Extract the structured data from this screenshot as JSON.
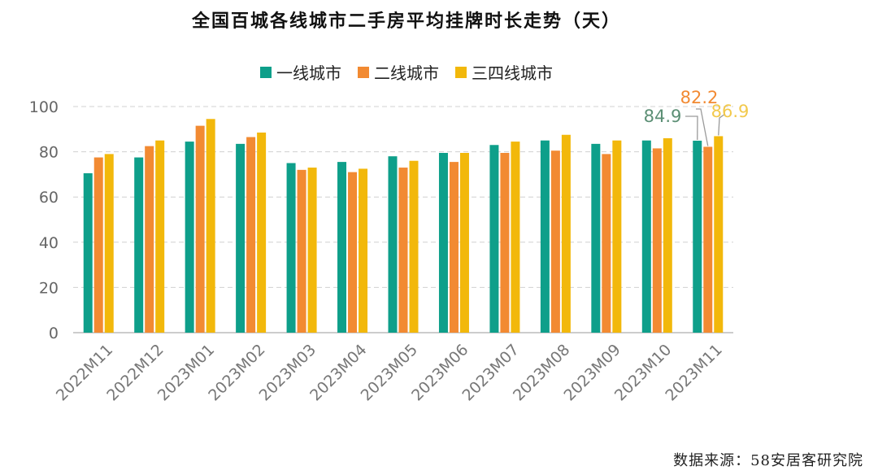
{
  "chart_data": {
    "type": "bar",
    "title": "全国百城各线城市二手房平均挂牌时长走势（天）",
    "categories": [
      "2022M11",
      "2022M12",
      "2023M01",
      "2023M02",
      "2023M03",
      "2023M04",
      "2023M05",
      "2023M06",
      "2023M07",
      "2023M08",
      "2023M09",
      "2023M10",
      "2023M11"
    ],
    "series": [
      {
        "name": "一线城市",
        "color": "#0e9f8a",
        "values": [
          70.5,
          77.5,
          84.5,
          83.5,
          75.0,
          75.5,
          78.0,
          79.5,
          83.0,
          85.0,
          83.5,
          85.0,
          84.9
        ]
      },
      {
        "name": "二线城市",
        "color": "#f28a32",
        "values": [
          77.5,
          82.5,
          91.5,
          86.5,
          72.0,
          71.0,
          73.0,
          75.5,
          79.5,
          80.5,
          79.0,
          81.5,
          82.2
        ]
      },
      {
        "name": "三四线城市",
        "color": "#f2b80b",
        "values": [
          79.0,
          85.0,
          94.5,
          88.5,
          73.0,
          72.5,
          76.0,
          79.5,
          84.5,
          87.5,
          85.0,
          86.0,
          86.9
        ]
      }
    ],
    "ylim": [
      0,
      100
    ],
    "yticks": [
      0,
      20,
      40,
      60,
      80,
      100
    ],
    "grid": true,
    "legend": "top-center",
    "annotations": [
      {
        "text": "84.9",
        "series": 0,
        "category": 12,
        "color": "#5c8f75"
      },
      {
        "text": "82.2",
        "series": 1,
        "category": 12,
        "color": "#f28a32"
      },
      {
        "text": "86.9",
        "series": 2,
        "category": 12,
        "color": "#f2c94c"
      }
    ]
  },
  "source": "数据来源：58安居客研究院"
}
